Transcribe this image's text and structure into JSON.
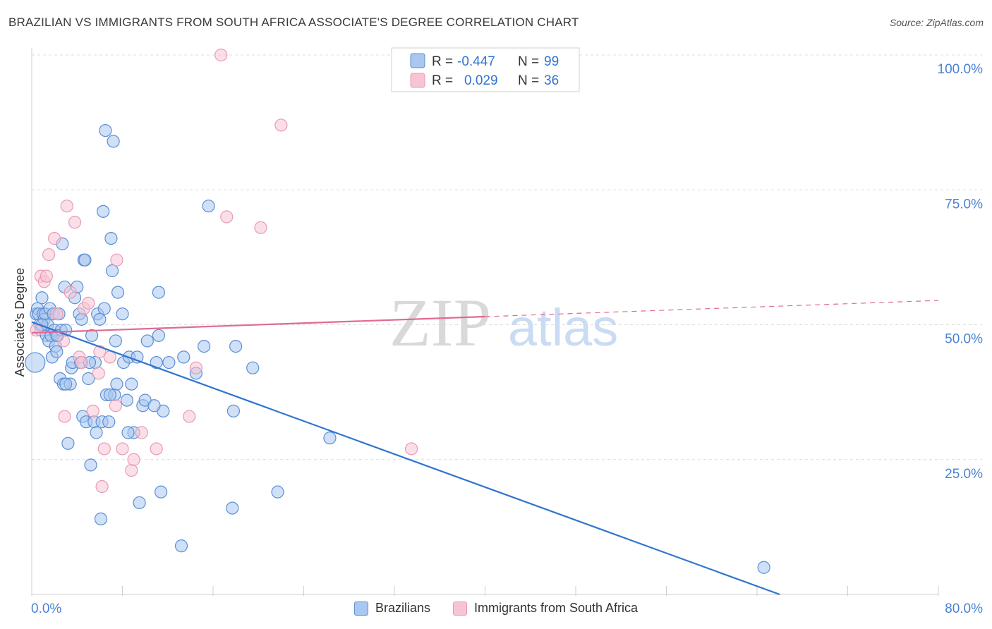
{
  "title": "BRAZILIAN VS IMMIGRANTS FROM SOUTH AFRICA ASSOCIATE'S DEGREE CORRELATION CHART",
  "source": "Source: ZipAtlas.com",
  "watermark": {
    "zip": "ZIP",
    "atlas": "atlas"
  },
  "chart_data": {
    "type": "scatter",
    "xlabel": "",
    "ylabel": "Associate's Degree",
    "xlim": [
      0,
      80
    ],
    "ylim": [
      0,
      100
    ],
    "x_tick_labels": [
      "0.0%",
      "80.0%"
    ],
    "y_ticks": [
      25,
      50,
      75,
      100
    ],
    "y_tick_labels": [
      "25.0%",
      "50.0%",
      "75.0%",
      "100.0%"
    ],
    "grid": true,
    "legend_inset": {
      "rows": [
        {
          "r_label": "R =",
          "r_value": "-0.447",
          "n_label": "N =",
          "n_value": "99"
        },
        {
          "r_label": "R =",
          "r_value": "0.029",
          "n_label": "N =",
          "n_value": "36"
        }
      ]
    },
    "series": [
      {
        "name": "Brazilians",
        "color": "#5b8fd6",
        "fill": "#a9c7ef",
        "line_color": "#2f74d0",
        "trend": {
          "x0": 0,
          "y0": 50.5,
          "x1": 66,
          "y1": 0,
          "solid_until": 66
        },
        "points": [
          [
            0.3,
            43
          ],
          [
            0.4,
            52
          ],
          [
            0.5,
            53
          ],
          [
            0.6,
            52
          ],
          [
            0.7,
            50
          ],
          [
            0.8,
            49
          ],
          [
            0.9,
            55
          ],
          [
            1.0,
            52
          ],
          [
            1.1,
            51
          ],
          [
            1.2,
            52
          ],
          [
            1.3,
            48
          ],
          [
            1.4,
            50
          ],
          [
            1.5,
            47
          ],
          [
            1.6,
            53
          ],
          [
            1.7,
            48
          ],
          [
            1.8,
            44
          ],
          [
            1.9,
            52
          ],
          [
            2.0,
            49
          ],
          [
            2.1,
            46
          ],
          [
            2.2,
            45
          ],
          [
            2.3,
            48
          ],
          [
            2.4,
            52
          ],
          [
            2.5,
            40
          ],
          [
            2.6,
            49
          ],
          [
            2.7,
            65
          ],
          [
            2.8,
            39
          ],
          [
            2.9,
            57
          ],
          [
            3.0,
            49
          ],
          [
            3.2,
            28
          ],
          [
            3.4,
            39
          ],
          [
            3.5,
            42
          ],
          [
            3.6,
            43
          ],
          [
            3.8,
            55
          ],
          [
            4.0,
            57
          ],
          [
            4.2,
            52
          ],
          [
            4.3,
            43
          ],
          [
            4.4,
            51
          ],
          [
            4.5,
            33
          ],
          [
            4.6,
            62
          ],
          [
            4.7,
            62
          ],
          [
            4.8,
            32
          ],
          [
            5.0,
            40
          ],
          [
            5.2,
            24
          ],
          [
            5.3,
            48
          ],
          [
            5.5,
            32
          ],
          [
            5.6,
            43
          ],
          [
            5.7,
            30
          ],
          [
            5.8,
            52
          ],
          [
            6.0,
            51
          ],
          [
            6.1,
            14
          ],
          [
            6.2,
            32
          ],
          [
            6.3,
            71
          ],
          [
            6.4,
            53
          ],
          [
            6.5,
            86
          ],
          [
            6.6,
            37
          ],
          [
            6.8,
            32
          ],
          [
            7.0,
            66
          ],
          [
            7.1,
            60
          ],
          [
            7.2,
            84
          ],
          [
            7.3,
            37
          ],
          [
            7.4,
            47
          ],
          [
            7.5,
            39
          ],
          [
            7.6,
            56
          ],
          [
            8.0,
            52
          ],
          [
            8.1,
            43
          ],
          [
            8.4,
            36
          ],
          [
            8.6,
            44
          ],
          [
            8.8,
            39
          ],
          [
            9.0,
            30
          ],
          [
            9.3,
            44
          ],
          [
            9.5,
            17
          ],
          [
            9.8,
            35
          ],
          [
            10.0,
            36
          ],
          [
            10.2,
            47
          ],
          [
            11.0,
            43
          ],
          [
            11.2,
            48
          ],
          [
            11.2,
            56
          ],
          [
            11.4,
            19
          ],
          [
            11.6,
            34
          ],
          [
            12.1,
            43
          ],
          [
            13.2,
            9
          ],
          [
            13.4,
            44
          ],
          [
            14.5,
            41
          ],
          [
            15.2,
            46
          ],
          [
            15.6,
            72
          ],
          [
            17.7,
            16
          ],
          [
            17.8,
            34
          ],
          [
            18.0,
            46
          ],
          [
            19.5,
            42
          ],
          [
            21.7,
            19
          ],
          [
            26.3,
            29
          ],
          [
            64.6,
            5
          ],
          [
            0.9,
            50
          ],
          [
            2.2,
            48
          ],
          [
            3.0,
            39
          ],
          [
            5.1,
            43
          ],
          [
            6.9,
            37
          ],
          [
            8.5,
            30
          ],
          [
            10.8,
            35
          ]
        ]
      },
      {
        "name": "Immigrants from South Africa",
        "color": "#e89ab4",
        "fill": "#f7c4d5",
        "line_color": "#e06a93",
        "trend": {
          "x0": 0,
          "y0": 48.5,
          "x1": 80,
          "y1": 54.5,
          "solid_until": 40
        },
        "points": [
          [
            0.4,
            49
          ],
          [
            0.8,
            59
          ],
          [
            1.1,
            58
          ],
          [
            1.3,
            59
          ],
          [
            1.5,
            63
          ],
          [
            2.0,
            66
          ],
          [
            2.2,
            52
          ],
          [
            2.8,
            47
          ],
          [
            2.9,
            33
          ],
          [
            3.1,
            72
          ],
          [
            3.4,
            56
          ],
          [
            3.8,
            69
          ],
          [
            4.2,
            44
          ],
          [
            4.4,
            43
          ],
          [
            4.6,
            53
          ],
          [
            5.0,
            54
          ],
          [
            5.4,
            34
          ],
          [
            5.9,
            41
          ],
          [
            6.0,
            45
          ],
          [
            6.2,
            20
          ],
          [
            6.4,
            27
          ],
          [
            6.9,
            44
          ],
          [
            7.4,
            35
          ],
          [
            7.5,
            62
          ],
          [
            8.0,
            27
          ],
          [
            8.8,
            23
          ],
          [
            9.0,
            25
          ],
          [
            9.7,
            30
          ],
          [
            11.0,
            27
          ],
          [
            13.9,
            33
          ],
          [
            14.5,
            42
          ],
          [
            16.7,
            100
          ],
          [
            17.2,
            70
          ],
          [
            20.2,
            68
          ],
          [
            22.0,
            87
          ],
          [
            33.5,
            27
          ]
        ]
      }
    ]
  }
}
